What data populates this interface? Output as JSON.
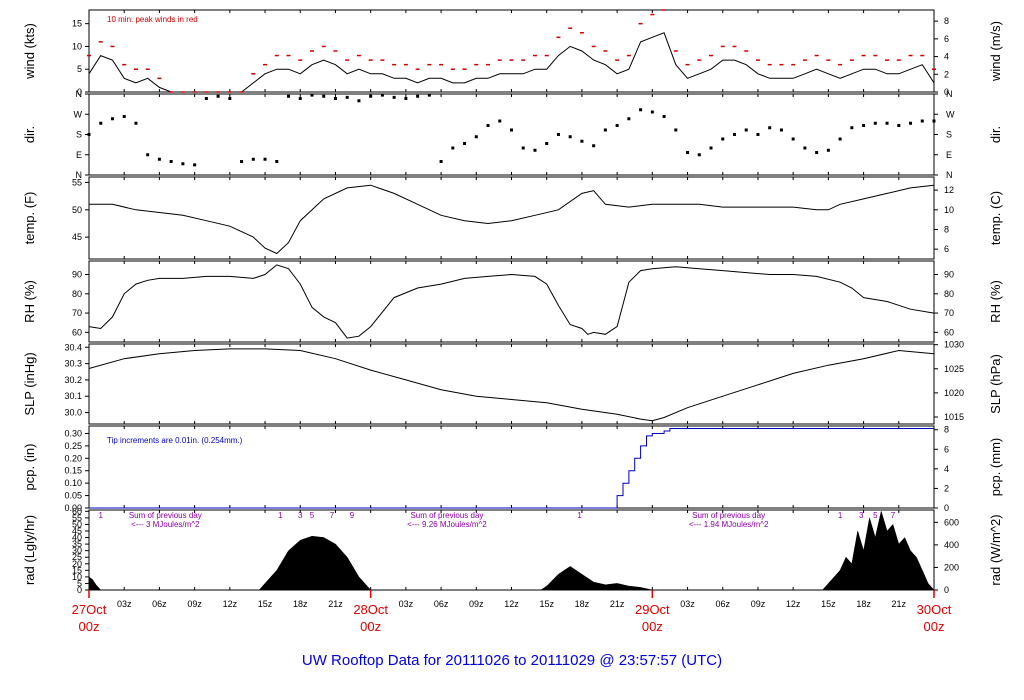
{
  "footer_title": "UW Rooftop Data for 20111026  to  20111029 @ 23:57:57  (UTC)",
  "colors": {
    "peak": "#d00000",
    "precip": "#0000c0",
    "date": "#e00000",
    "purple": "#8a00a8",
    "footer": "#0000e0"
  },
  "x_axis": {
    "hours_total": 72,
    "hour_ticks": [
      "03z",
      "06z",
      "09z",
      "12z",
      "15z",
      "18z",
      "21z"
    ],
    "day_labels": [
      {
        "date": "27Oct",
        "hour": "00z",
        "at_hour": 0
      },
      {
        "date": "28Oct",
        "hour": "00z",
        "at_hour": 24
      },
      {
        "date": "29Oct",
        "hour": "00z",
        "at_hour": 48
      },
      {
        "date": "30Oct",
        "hour": "00z",
        "at_hour": 72
      }
    ]
  },
  "chart_data": [
    {
      "type": "line",
      "panel": "wind",
      "ylabel": "wind (kts)",
      "ylabel_right": "wind (m/s)",
      "ylim": [
        0,
        18
      ],
      "yticks": [
        0,
        5,
        10,
        15
      ],
      "yticks_right": [
        0,
        2,
        4,
        6,
        8
      ],
      "right_factor": 1.944,
      "annotation": "10 min. peak winds in red",
      "series": [
        {
          "name": "wind speed",
          "x": [
            0,
            1,
            2,
            3,
            4,
            5,
            6,
            7,
            8,
            9,
            10,
            11,
            12,
            13,
            14,
            15,
            16,
            17,
            18,
            19,
            20,
            21,
            22,
            23,
            24,
            25,
            26,
            27,
            28,
            29,
            30,
            31,
            32,
            33,
            34,
            35,
            36,
            37,
            38,
            39,
            40,
            41,
            42,
            43,
            44,
            45,
            46,
            47,
            48,
            49,
            50,
            51,
            52,
            53,
            54,
            55,
            56,
            57,
            58,
            59,
            60,
            61,
            62,
            63,
            64,
            65,
            66,
            67,
            68,
            69,
            70,
            71,
            72
          ],
          "y": [
            4,
            8,
            7,
            3,
            2,
            3,
            1,
            0,
            0,
            0,
            0,
            0,
            0,
            0,
            2,
            4,
            5,
            5,
            4,
            6,
            7,
            6,
            4,
            5,
            4,
            4,
            3,
            3,
            2,
            3,
            3,
            2,
            2,
            3,
            3,
            4,
            4,
            4,
            5,
            5,
            8,
            10,
            9,
            7,
            6,
            4,
            5,
            11,
            12,
            13,
            6,
            3,
            4,
            5,
            7,
            7,
            6,
            4,
            3,
            3,
            3,
            4,
            5,
            4,
            3,
            4,
            5,
            5,
            4,
            4,
            5,
            6,
            2
          ]
        },
        {
          "name": "10 min. peak winds",
          "x": [
            0,
            1,
            2,
            3,
            4,
            5,
            6,
            7,
            8,
            9,
            10,
            11,
            12,
            13,
            14,
            15,
            16,
            17,
            18,
            19,
            20,
            21,
            22,
            23,
            24,
            25,
            26,
            27,
            28,
            29,
            30,
            31,
            32,
            33,
            34,
            35,
            36,
            37,
            38,
            39,
            40,
            41,
            42,
            43,
            44,
            45,
            46,
            47,
            48,
            49,
            50,
            51,
            52,
            53,
            54,
            55,
            56,
            57,
            58,
            59,
            60,
            61,
            62,
            63,
            64,
            65,
            66,
            67,
            68,
            69,
            70,
            71,
            72
          ],
          "y": [
            8,
            11,
            10,
            6,
            5,
            5,
            3,
            0,
            0,
            0,
            0,
            0,
            0,
            0,
            4,
            6,
            8,
            8,
            7,
            9,
            10,
            9,
            7,
            8,
            7,
            7,
            6,
            6,
            5,
            6,
            6,
            5,
            5,
            6,
            6,
            7,
            7,
            7,
            8,
            8,
            12,
            14,
            13,
            10,
            9,
            7,
            8,
            15,
            17,
            18,
            9,
            6,
            7,
            8,
            10,
            10,
            9,
            7,
            6,
            6,
            6,
            7,
            8,
            7,
            6,
            7,
            8,
            8,
            7,
            7,
            8,
            8,
            5
          ]
        }
      ]
    },
    {
      "type": "scatter",
      "panel": "direction",
      "ylabel": "dir.",
      "ylabel_right": "dir.",
      "ylim": [
        0,
        360
      ],
      "ytick_labels": [
        "N",
        "E",
        "S",
        "W",
        "N"
      ],
      "ytick_values": [
        0,
        90,
        180,
        270,
        360
      ],
      "series": [
        {
          "name": "wind direction",
          "x": [
            0,
            1,
            2,
            3,
            4,
            5,
            6,
            7,
            8,
            9,
            10,
            11,
            12,
            13,
            14,
            15,
            16,
            17,
            18,
            19,
            20,
            21,
            22,
            23,
            24,
            25,
            26,
            27,
            28,
            29,
            30,
            31,
            32,
            33,
            34,
            35,
            36,
            37,
            38,
            39,
            40,
            41,
            42,
            43,
            44,
            45,
            46,
            47,
            48,
            49,
            50,
            51,
            52,
            53,
            54,
            55,
            56,
            57,
            58,
            59,
            60,
            61,
            62,
            63,
            64,
            65,
            66,
            67,
            68,
            69,
            70,
            71,
            72
          ],
          "y": [
            180,
            230,
            250,
            260,
            230,
            90,
            70,
            60,
            50,
            45,
            340,
            350,
            340,
            60,
            70,
            70,
            60,
            350,
            340,
            355,
            350,
            340,
            345,
            330,
            350,
            355,
            345,
            340,
            350,
            355,
            60,
            120,
            140,
            170,
            220,
            240,
            200,
            120,
            110,
            140,
            180,
            170,
            150,
            130,
            200,
            220,
            250,
            290,
            280,
            260,
            200,
            100,
            90,
            120,
            160,
            180,
            200,
            180,
            210,
            200,
            160,
            120,
            100,
            110,
            160,
            210,
            220,
            230,
            230,
            220,
            230,
            240,
            240
          ]
        }
      ]
    },
    {
      "type": "line",
      "panel": "temperature",
      "ylabel": "temp. (F)",
      "ylabel_right": "temp. (C)",
      "ylim": [
        41,
        56
      ],
      "yticks": [
        45,
        50,
        55
      ],
      "yticks_right": [
        6,
        8,
        10,
        12
      ],
      "series": [
        {
          "name": "temperature",
          "x": [
            0,
            2,
            4,
            6,
            8,
            10,
            12,
            14,
            15,
            16,
            17,
            18,
            20,
            22,
            24,
            26,
            28,
            30,
            32,
            34,
            36,
            38,
            40,
            42,
            43,
            44,
            46,
            48,
            50,
            52,
            54,
            56,
            58,
            60,
            62,
            63,
            64,
            66,
            68,
            70,
            72
          ],
          "y": [
            51,
            51,
            50,
            49.5,
            49,
            48,
            47,
            45,
            43,
            42,
            44,
            48,
            52,
            54,
            54.5,
            53,
            51,
            49,
            48,
            47.5,
            48,
            49,
            50,
            53,
            53.5,
            51,
            50.5,
            51,
            51,
            51,
            50.5,
            50.5,
            50.5,
            50.5,
            50,
            50,
            51,
            52,
            53,
            54,
            54.5
          ]
        }
      ]
    },
    {
      "type": "line",
      "panel": "humidity",
      "ylabel": "RH (%)",
      "ylabel_right": "RH (%)",
      "ylim": [
        55,
        97
      ],
      "yticks": [
        60,
        70,
        80,
        90
      ],
      "series": [
        {
          "name": "relative humidity",
          "x": [
            0,
            1,
            2,
            3,
            4,
            5,
            6,
            8,
            10,
            12,
            14,
            15,
            16,
            17,
            18,
            19,
            20,
            21,
            22,
            23,
            24,
            26,
            28,
            30,
            32,
            34,
            36,
            38,
            39,
            40,
            41,
            42,
            42.5,
            43,
            44,
            45,
            46,
            47,
            48,
            50,
            52,
            54,
            56,
            58,
            60,
            62,
            64,
            65,
            66,
            68,
            70,
            72
          ],
          "y": [
            63,
            62,
            68,
            80,
            85,
            87,
            88,
            88,
            89,
            89,
            88,
            90,
            95,
            93,
            85,
            73,
            68,
            65,
            57,
            58,
            63,
            78,
            83,
            85,
            88,
            89,
            90,
            89,
            85,
            74,
            64,
            62,
            59,
            60,
            59,
            63,
            86,
            92,
            93,
            94,
            93,
            92,
            91,
            90,
            90,
            89,
            86,
            83,
            78,
            76,
            72,
            70
          ]
        }
      ]
    },
    {
      "type": "line",
      "panel": "pressure",
      "ylabel": "SLP (inHg)",
      "ylabel_right": "SLP (hPa)",
      "ylim": [
        29.93,
        30.42
      ],
      "yticks": [
        30.0,
        30.1,
        30.2,
        30.3,
        30.4
      ],
      "yticks_right": [
        1015,
        1020,
        1025,
        1030
      ],
      "series": [
        {
          "name": "sea level pressure",
          "x": [
            0,
            3,
            6,
            9,
            12,
            15,
            18,
            21,
            24,
            27,
            30,
            33,
            36,
            39,
            42,
            45,
            47,
            48,
            49,
            51,
            54,
            57,
            60,
            63,
            66,
            69,
            72
          ],
          "y": [
            30.27,
            30.33,
            30.36,
            30.38,
            30.39,
            30.39,
            30.38,
            30.33,
            30.26,
            30.2,
            30.14,
            30.1,
            30.08,
            30.06,
            30.02,
            29.99,
            29.96,
            29.95,
            29.97,
            30.03,
            30.1,
            30.17,
            30.24,
            30.29,
            30.33,
            30.38,
            30.36
          ]
        }
      ]
    },
    {
      "type": "line",
      "panel": "precipitation",
      "ylabel": "pcp. (in)",
      "ylabel_right": "pcp. (mm)",
      "ylim": [
        0,
        0.33
      ],
      "yticks": [
        0.0,
        0.05,
        0.1,
        0.15,
        0.2,
        0.25,
        0.3
      ],
      "yticks_right": [
        0,
        2,
        4,
        6,
        8
      ],
      "annotation": "Tip increments are 0.01in. (0.254mm.)",
      "series": [
        {
          "name": "accumulated precipitation",
          "x": [
            0,
            44.6,
            45,
            45.5,
            46,
            46.5,
            47,
            47.5,
            48,
            48.5,
            49,
            49.5,
            50,
            72
          ],
          "y": [
            0,
            0,
            0.05,
            0.1,
            0.15,
            0.2,
            0.25,
            0.29,
            0.3,
            0.3,
            0.31,
            0.32,
            0.32,
            0.32
          ]
        }
      ]
    },
    {
      "type": "area",
      "panel": "radiation",
      "ylabel": "rad (Lgly/hr)",
      "ylabel_right": "rad (W/m^2)",
      "ylim": [
        0,
        61
      ],
      "yticks": [
        0,
        5,
        10,
        15,
        20,
        25,
        30,
        35,
        40,
        45,
        50,
        55,
        60
      ],
      "yticks_right": [
        0,
        200,
        400,
        600
      ],
      "hour_marks": [
        "1",
        "3",
        "5",
        "7",
        "9"
      ],
      "daily_notes": [
        {
          "line1": "Sum of previous day",
          "line2": "<--- 3 MJoules/m^2"
        },
        {
          "line1": "Sum of previous day",
          "line2": "<--- 9.26 MJoules/m^2"
        },
        {
          "line1": "Sum of previous day",
          "line2": "<--- 1.94 MJoules/m^2"
        }
      ],
      "series": [
        {
          "name": "solar radiation",
          "x": [
            0,
            0.3,
            0.6,
            1,
            14.5,
            15,
            16,
            17,
            18,
            19,
            20,
            21,
            22,
            23,
            24,
            38.5,
            39,
            40,
            41,
            42,
            43,
            44,
            45,
            46,
            47,
            48,
            62.5,
            63,
            63.5,
            64,
            64.5,
            65,
            65.5,
            66,
            66.5,
            67,
            67.5,
            68,
            68.5,
            69,
            69.5,
            70,
            70.5,
            71,
            71.5,
            72
          ],
          "y": [
            10,
            8,
            4,
            0,
            0,
            5,
            15,
            30,
            38,
            41,
            40,
            35,
            25,
            10,
            0,
            0,
            3,
            12,
            18,
            12,
            6,
            4,
            5,
            3,
            2,
            0,
            0,
            5,
            10,
            15,
            25,
            20,
            45,
            30,
            55,
            40,
            60,
            45,
            50,
            35,
            40,
            30,
            25,
            15,
            5,
            0
          ]
        }
      ]
    }
  ]
}
